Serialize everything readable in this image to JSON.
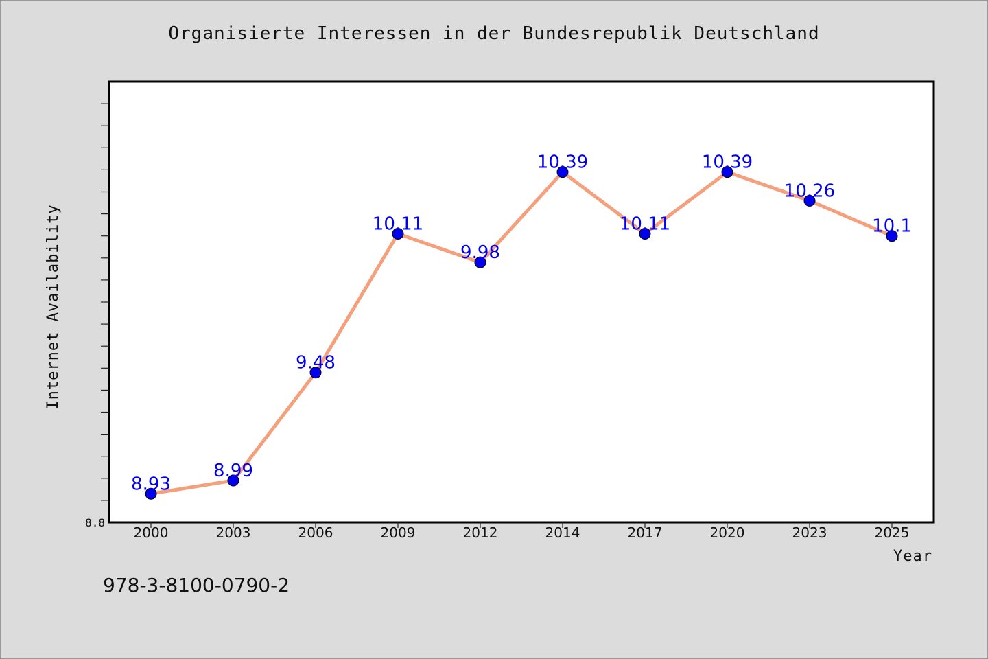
{
  "title": "Organisierte Interessen in der Bundesrepublik Deutschland",
  "footer_text": "978-3-8100-0790-2",
  "colors": {
    "background": "#dcdcdc",
    "plot_background": "#ffffff",
    "line": "#f4a07c",
    "marker": "#0000ee",
    "data_label": "#0000ee"
  },
  "chart_data": {
    "type": "line",
    "title": "Organisierte Interessen in der Bundesrepublik Deutschland",
    "xlabel": "Year",
    "ylabel": "Internet Availability",
    "categories": [
      "2000",
      "2003",
      "2006",
      "2009",
      "2012",
      "2014",
      "2017",
      "2020",
      "2023",
      "2025"
    ],
    "series": [
      {
        "values": [
          8.93,
          8.99,
          9.48,
          10.11,
          9.98,
          10.39,
          10.11,
          10.39,
          10.26,
          10.1
        ]
      }
    ],
    "data_labels": [
      "8.93",
      "8.99",
      "9.48",
      "10.11",
      "9.98",
      "10.39",
      "10.11",
      "10.39",
      "10.26",
      "10.1"
    ],
    "y_tick_labels": [
      "8.8"
    ],
    "ylim": [
      8.8,
      10.8
    ],
    "grid": false,
    "legend": "none"
  }
}
